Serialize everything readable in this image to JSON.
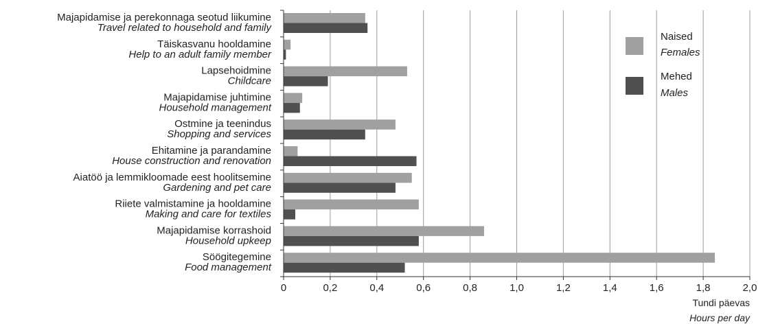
{
  "chart_data": {
    "type": "bar",
    "orientation": "horizontal",
    "categories": [
      {
        "et": "Majapidamise ja perekonnaga seotud liikumine",
        "en": "Travel related to household and family"
      },
      {
        "et": "Täiskasvanu hooldamine",
        "en": "Help to an adult family member"
      },
      {
        "et": "Lapsehoidmine",
        "en": "Childcare"
      },
      {
        "et": "Majapidamise juhtimine",
        "en": "Household management"
      },
      {
        "et": "Ostmine ja teenindus",
        "en": "Shopping and services"
      },
      {
        "et": "Ehitamine ja parandamine",
        "en": "House construction and renovation"
      },
      {
        "et": "Aiatöö ja lemmikloomade eest hoolitsemine",
        "en": "Gardening and pet care"
      },
      {
        "et": "Riiete valmistamine ja hooldamine",
        "en": "Making and care for textiles"
      },
      {
        "et": "Majapidamise korrashoid",
        "en": "Household upkeep"
      },
      {
        "et": "Söögitegemine",
        "en": "Food management"
      }
    ],
    "series": [
      {
        "name": "Naised",
        "name_en": "Females",
        "color": "#a0a0a0",
        "values": [
          0.35,
          0.03,
          0.53,
          0.08,
          0.48,
          0.06,
          0.55,
          0.58,
          0.86,
          1.85
        ]
      },
      {
        "name": "Mehed",
        "name_en": "Males",
        "color": "#505050",
        "values": [
          0.36,
          0.01,
          0.19,
          0.07,
          0.35,
          0.57,
          0.48,
          0.05,
          0.58,
          0.52
        ]
      }
    ],
    "xlim": [
      0,
      2.0
    ],
    "xticks": [
      0,
      0.2,
      0.4,
      0.6,
      0.8,
      1.0,
      1.2,
      1.4,
      1.6,
      1.8,
      2.0
    ],
    "tick_labels": [
      "0",
      "0,2",
      "0,4",
      "0,6",
      "0,8",
      "1,0",
      "1,2",
      "1,4",
      "1,6",
      "1,8",
      "2,0"
    ],
    "xlabel": "Tundi päevas",
    "xlabel_en": "Hours per day",
    "grid": true,
    "legend_position": "top-right"
  }
}
